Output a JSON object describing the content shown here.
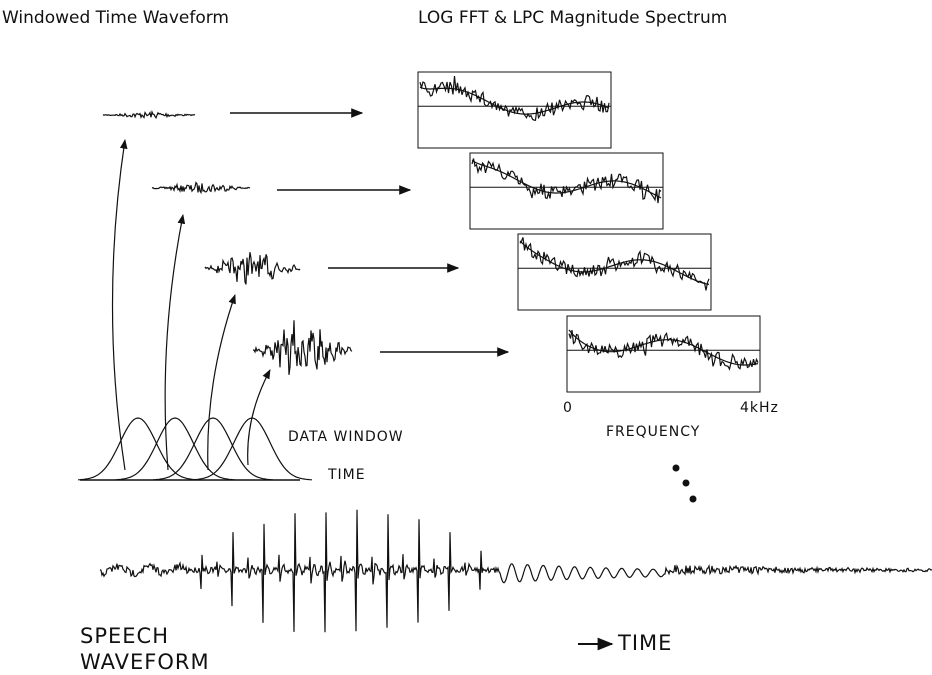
{
  "titles": {
    "left": "Windowed Time Waveform",
    "right": "LOG FFT & LPC Magnitude Spectrum"
  },
  "labels": {
    "data_window": "DATA WINDOW",
    "window_time": "TIME",
    "freq_start": "0",
    "freq_end": "4kHz",
    "frequency": "FREQUENCY",
    "speech_line1": "SPEECH",
    "speech_line2": "WAVEFORM",
    "time": "TIME"
  }
}
